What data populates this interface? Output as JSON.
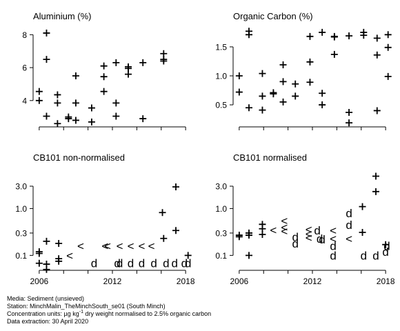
{
  "chart_data": [
    {
      "type": "scatter",
      "title": "Aluminium (%)",
      "xlim": [
        2005.5,
        2018.5
      ],
      "ylim": [
        2.4,
        8.6
      ],
      "y_scale": "linear",
      "yticks": [
        4,
        6,
        8
      ],
      "ytick_labels": [
        "4",
        "6",
        "8"
      ],
      "xticks": [
        2006,
        2008,
        2010,
        2012,
        2014,
        2016,
        2018
      ],
      "xtick_labels": [
        "",
        "",
        "",
        "",
        "",
        "",
        ""
      ],
      "points": [
        {
          "x": 2006.0,
          "y": 4.55,
          "m": "+"
        },
        {
          "x": 2006.0,
          "y": 4.0,
          "m": "+"
        },
        {
          "x": 2006.6,
          "y": 8.1,
          "m": "+"
        },
        {
          "x": 2006.6,
          "y": 6.5,
          "m": "+"
        },
        {
          "x": 2006.6,
          "y": 3.05,
          "m": "+"
        },
        {
          "x": 2007.5,
          "y": 4.35,
          "m": "+"
        },
        {
          "x": 2007.5,
          "y": 3.85,
          "m": "+"
        },
        {
          "x": 2007.5,
          "y": 2.6,
          "m": "+"
        },
        {
          "x": 2008.4,
          "y": 3.0,
          "m": "+"
        },
        {
          "x": 2008.4,
          "y": 2.9,
          "m": "+"
        },
        {
          "x": 2009.0,
          "y": 5.5,
          "m": "+"
        },
        {
          "x": 2009.0,
          "y": 3.85,
          "m": "+"
        },
        {
          "x": 2009.0,
          "y": 2.8,
          "m": "+"
        },
        {
          "x": 2010.3,
          "y": 3.55,
          "m": "+"
        },
        {
          "x": 2010.3,
          "y": 2.7,
          "m": "+"
        },
        {
          "x": 2011.3,
          "y": 6.1,
          "m": "+"
        },
        {
          "x": 2011.3,
          "y": 5.45,
          "m": "+"
        },
        {
          "x": 2011.3,
          "y": 4.55,
          "m": "+"
        },
        {
          "x": 2012.3,
          "y": 6.3,
          "m": "+"
        },
        {
          "x": 2012.3,
          "y": 3.85,
          "m": "+"
        },
        {
          "x": 2012.3,
          "y": 3.05,
          "m": "+"
        },
        {
          "x": 2013.3,
          "y": 6.05,
          "m": "+"
        },
        {
          "x": 2013.3,
          "y": 5.95,
          "m": "+"
        },
        {
          "x": 2013.3,
          "y": 5.6,
          "m": "+"
        },
        {
          "x": 2014.5,
          "y": 6.3,
          "m": "+"
        },
        {
          "x": 2014.5,
          "y": 2.9,
          "m": "+"
        },
        {
          "x": 2016.2,
          "y": 6.85,
          "m": "+"
        },
        {
          "x": 2016.2,
          "y": 6.5,
          "m": "+"
        },
        {
          "x": 2016.2,
          "y": 6.4,
          "m": "+"
        }
      ]
    },
    {
      "type": "scatter",
      "title": "Organic Carbon (%)",
      "xlim": [
        2005.5,
        2018.5
      ],
      "ylim": [
        0.12,
        1.88
      ],
      "y_scale": "linear",
      "yticks": [
        0.5,
        1.0,
        1.5
      ],
      "ytick_labels": [
        "0.5",
        "1.0",
        "1.5"
      ],
      "xticks": [
        2006,
        2008,
        2010,
        2012,
        2014,
        2016,
        2018
      ],
      "xtick_labels": [
        "",
        "",
        "",
        "",
        "",
        "",
        ""
      ],
      "points": [
        {
          "x": 2006.0,
          "y": 1.0,
          "m": "+"
        },
        {
          "x": 2006.0,
          "y": 0.72,
          "m": "+"
        },
        {
          "x": 2006.8,
          "y": 1.77,
          "m": "+"
        },
        {
          "x": 2006.8,
          "y": 1.71,
          "m": "+"
        },
        {
          "x": 2006.8,
          "y": 0.45,
          "m": "+"
        },
        {
          "x": 2007.9,
          "y": 1.04,
          "m": "+"
        },
        {
          "x": 2007.9,
          "y": 0.65,
          "m": "+"
        },
        {
          "x": 2007.9,
          "y": 0.41,
          "m": "+"
        },
        {
          "x": 2008.8,
          "y": 0.71,
          "m": "+"
        },
        {
          "x": 2008.8,
          "y": 0.69,
          "m": "+"
        },
        {
          "x": 2009.6,
          "y": 1.19,
          "m": "+"
        },
        {
          "x": 2009.6,
          "y": 0.9,
          "m": "+"
        },
        {
          "x": 2009.6,
          "y": 0.55,
          "m": "+"
        },
        {
          "x": 2010.6,
          "y": 0.86,
          "m": "+"
        },
        {
          "x": 2010.6,
          "y": 0.65,
          "m": "+"
        },
        {
          "x": 2011.8,
          "y": 1.68,
          "m": "+"
        },
        {
          "x": 2011.8,
          "y": 1.24,
          "m": "+"
        },
        {
          "x": 2011.8,
          "y": 0.89,
          "m": "+"
        },
        {
          "x": 2012.8,
          "y": 1.75,
          "m": "+"
        },
        {
          "x": 2012.8,
          "y": 0.7,
          "m": "+"
        },
        {
          "x": 2012.8,
          "y": 0.5,
          "m": "+"
        },
        {
          "x": 2013.8,
          "y": 1.68,
          "m": "+"
        },
        {
          "x": 2013.8,
          "y": 1.67,
          "m": "+"
        },
        {
          "x": 2013.8,
          "y": 1.37,
          "m": "+"
        },
        {
          "x": 2015.0,
          "y": 1.69,
          "m": "+"
        },
        {
          "x": 2015.0,
          "y": 0.37,
          "m": "+"
        },
        {
          "x": 2015.0,
          "y": 0.19,
          "m": "+"
        },
        {
          "x": 2016.2,
          "y": 1.75,
          "m": "+"
        },
        {
          "x": 2016.2,
          "y": 1.7,
          "m": "+"
        },
        {
          "x": 2017.3,
          "y": 1.65,
          "m": "+"
        },
        {
          "x": 2017.3,
          "y": 1.36,
          "m": "+"
        },
        {
          "x": 2017.3,
          "y": 0.4,
          "m": "+"
        },
        {
          "x": 2018.2,
          "y": 1.71,
          "m": "+"
        },
        {
          "x": 2018.2,
          "y": 1.49,
          "m": "+"
        },
        {
          "x": 2018.2,
          "y": 0.99,
          "m": "+"
        }
      ]
    },
    {
      "type": "scatter",
      "title": "CB101 non-normalised",
      "xlim": [
        2005.5,
        2018.5
      ],
      "ylim": [
        0.048,
        7.0
      ],
      "y_scale": "log",
      "yticks": [
        0.1,
        0.3,
        1.0,
        3.0
      ],
      "ytick_labels": [
        "0.1",
        "0.3",
        "1.0",
        "3.0"
      ],
      "xticks": [
        2006,
        2008,
        2010,
        2012,
        2014,
        2016,
        2018
      ],
      "xtick_labels": [
        "2006",
        "",
        "",
        "2012",
        "",
        "",
        "2018"
      ],
      "points": [
        {
          "x": 2006.0,
          "y": 0.12,
          "m": "+"
        },
        {
          "x": 2006.0,
          "y": 0.11,
          "m": "+"
        },
        {
          "x": 2006.0,
          "y": 0.068,
          "m": "+"
        },
        {
          "x": 2006.6,
          "y": 0.2,
          "m": "+"
        },
        {
          "x": 2006.6,
          "y": 0.065,
          "m": "+"
        },
        {
          "x": 2006.6,
          "y": 0.05,
          "m": "+"
        },
        {
          "x": 2007.6,
          "y": 0.18,
          "m": "+"
        },
        {
          "x": 2007.6,
          "y": 0.085,
          "m": "+"
        },
        {
          "x": 2007.6,
          "y": 0.075,
          "m": "+"
        },
        {
          "x": 2008.5,
          "y": 0.1,
          "m": "<"
        },
        {
          "x": 2009.4,
          "y": 0.16,
          "m": "<"
        },
        {
          "x": 2010.5,
          "y": 0.068,
          "m": "d"
        },
        {
          "x": 2011.4,
          "y": 0.16,
          "m": "<"
        },
        {
          "x": 2011.6,
          "y": 0.16,
          "m": "<"
        },
        {
          "x": 2012.4,
          "y": 0.068,
          "m": "d"
        },
        {
          "x": 2012.6,
          "y": 0.068,
          "m": "d"
        },
        {
          "x": 2012.6,
          "y": 0.16,
          "m": "<"
        },
        {
          "x": 2013.5,
          "y": 0.068,
          "m": "d"
        },
        {
          "x": 2013.5,
          "y": 0.16,
          "m": "<"
        },
        {
          "x": 2014.4,
          "y": 0.068,
          "m": "d"
        },
        {
          "x": 2014.4,
          "y": 0.16,
          "m": "<"
        },
        {
          "x": 2015.4,
          "y": 0.068,
          "m": "d"
        },
        {
          "x": 2015.2,
          "y": 0.16,
          "m": "<"
        },
        {
          "x": 2016.1,
          "y": 0.82,
          "m": "+"
        },
        {
          "x": 2016.2,
          "y": 0.23,
          "m": "+"
        },
        {
          "x": 2016.4,
          "y": 0.068,
          "m": "d"
        },
        {
          "x": 2017.2,
          "y": 2.9,
          "m": "+"
        },
        {
          "x": 2017.2,
          "y": 0.34,
          "m": "+"
        },
        {
          "x": 2017.1,
          "y": 0.068,
          "m": "d"
        },
        {
          "x": 2017.9,
          "y": 0.068,
          "m": "d"
        },
        {
          "x": 2018.2,
          "y": 0.1,
          "m": "+"
        },
        {
          "x": 2018.2,
          "y": 0.068,
          "m": "d"
        }
      ]
    },
    {
      "type": "scatter",
      "title": "CB101 normalised",
      "xlim": [
        2005.5,
        2018.5
      ],
      "ylim": [
        0.048,
        7.0
      ],
      "y_scale": "log",
      "yticks": [
        0.1,
        0.3,
        1.0,
        3.0
      ],
      "ytick_labels": [
        "0.1",
        "0.3",
        "1.0",
        "3.0"
      ],
      "xticks": [
        2006,
        2008,
        2010,
        2012,
        2014,
        2016,
        2018
      ],
      "xtick_labels": [
        "2006",
        "",
        "",
        "2012",
        "",
        "",
        "2018"
      ],
      "points": [
        {
          "x": 2006.0,
          "y": 0.27,
          "m": "+"
        },
        {
          "x": 2006.0,
          "y": 0.25,
          "m": "+"
        },
        {
          "x": 2006.8,
          "y": 0.3,
          "m": "+"
        },
        {
          "x": 2006.8,
          "y": 0.27,
          "m": "+"
        },
        {
          "x": 2006.8,
          "y": 0.1,
          "m": "+"
        },
        {
          "x": 2007.9,
          "y": 0.46,
          "m": "+"
        },
        {
          "x": 2007.9,
          "y": 0.37,
          "m": "+"
        },
        {
          "x": 2007.9,
          "y": 0.28,
          "m": "+"
        },
        {
          "x": 2008.8,
          "y": 0.35,
          "m": "<"
        },
        {
          "x": 2009.7,
          "y": 0.55,
          "m": "<"
        },
        {
          "x": 2009.7,
          "y": 0.4,
          "m": "<"
        },
        {
          "x": 2009.7,
          "y": 0.33,
          "m": "<"
        },
        {
          "x": 2010.6,
          "y": 0.25,
          "m": "d"
        },
        {
          "x": 2010.6,
          "y": 0.18,
          "m": "d"
        },
        {
          "x": 2011.7,
          "y": 0.36,
          "m": "<"
        },
        {
          "x": 2011.7,
          "y": 0.29,
          "m": "<"
        },
        {
          "x": 2011.7,
          "y": 0.24,
          "m": "<"
        },
        {
          "x": 2012.4,
          "y": 0.34,
          "m": "d"
        },
        {
          "x": 2012.6,
          "y": 0.23,
          "m": "d"
        },
        {
          "x": 2012.8,
          "y": 0.22,
          "m": "d"
        },
        {
          "x": 2013.7,
          "y": 0.34,
          "m": "<"
        },
        {
          "x": 2013.7,
          "y": 0.23,
          "m": "<"
        },
        {
          "x": 2013.7,
          "y": 0.16,
          "m": "d"
        },
        {
          "x": 2013.7,
          "y": 0.1,
          "m": "d"
        },
        {
          "x": 2015.0,
          "y": 0.8,
          "m": "d"
        },
        {
          "x": 2015.0,
          "y": 0.45,
          "m": "d"
        },
        {
          "x": 2015.0,
          "y": 0.23,
          "m": "<"
        },
        {
          "x": 2016.1,
          "y": 1.1,
          "m": "+"
        },
        {
          "x": 2016.1,
          "y": 0.31,
          "m": "+"
        },
        {
          "x": 2016.2,
          "y": 0.1,
          "m": "d"
        },
        {
          "x": 2017.2,
          "y": 4.9,
          "m": "+"
        },
        {
          "x": 2017.2,
          "y": 2.3,
          "m": "+"
        },
        {
          "x": 2017.2,
          "y": 0.1,
          "m": "d"
        },
        {
          "x": 2018.0,
          "y": 0.17,
          "m": "+"
        },
        {
          "x": 2018.1,
          "y": 0.16,
          "m": "d"
        },
        {
          "x": 2018.0,
          "y": 0.12,
          "m": "d"
        }
      ]
    }
  ],
  "footer": {
    "media": "Media: Sediment (unsieved)",
    "station": "Station: MinchMalin_TheMinchSouth_se01 (South Minch)",
    "units_prefix": "Concentration units: ",
    "units_mu": "µg kg",
    "units_sup": "-1",
    "units_suffix": " dry weight normalised to 2.5% organic carbon",
    "extraction": "Data extraction: 30 April 2020"
  }
}
